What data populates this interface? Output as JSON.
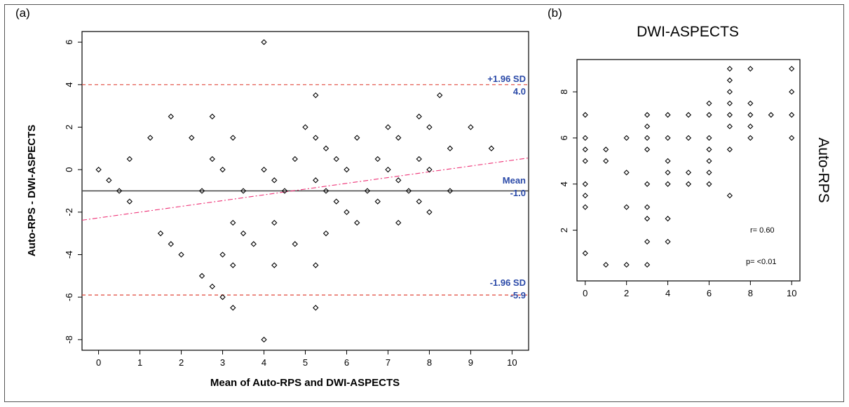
{
  "figure": {
    "panel_a_label": "(a)",
    "panel_b_label": "(b)"
  },
  "chart_data": [
    {
      "type": "scatter",
      "subtype": "bland-altman",
      "panel": "(a)",
      "xlabel": "Mean of Auto-RPS and DWI-ASPECTS",
      "ylabel": "Auto-RPS - DWI-ASPECTS",
      "xlim": [
        -0.4,
        10.4
      ],
      "ylim": [
        -8.5,
        6.5
      ],
      "xticks": [
        0,
        1,
        2,
        3,
        4,
        5,
        6,
        7,
        8,
        9,
        10
      ],
      "yticks": [
        -8,
        -6,
        -4,
        -2,
        0,
        2,
        4,
        6
      ],
      "grid": false,
      "marker": "diamond-open",
      "points": [
        [
          0,
          0
        ],
        [
          0.25,
          -0.5
        ],
        [
          0.5,
          -1
        ],
        [
          0.75,
          0.5
        ],
        [
          0.75,
          -1.5
        ],
        [
          1.25,
          1.5
        ],
        [
          1.5,
          -3
        ],
        [
          1.75,
          2.5
        ],
        [
          1.75,
          -3.5
        ],
        [
          2,
          -4
        ],
        [
          2.25,
          1.5
        ],
        [
          2.5,
          -1
        ],
        [
          2.5,
          -5
        ],
        [
          2.75,
          2.5
        ],
        [
          2.75,
          0.5
        ],
        [
          2.75,
          -5.5
        ],
        [
          3,
          0
        ],
        [
          3,
          -4
        ],
        [
          3,
          -6
        ],
        [
          3.25,
          1.5
        ],
        [
          3.25,
          -2.5
        ],
        [
          3.25,
          -4.5
        ],
        [
          3.25,
          -6.5
        ],
        [
          3.5,
          -1
        ],
        [
          3.5,
          -3
        ],
        [
          3.75,
          -3.5
        ],
        [
          4,
          6
        ],
        [
          4,
          0
        ],
        [
          4,
          -8
        ],
        [
          4.25,
          -0.5
        ],
        [
          4.25,
          -2.5
        ],
        [
          4.25,
          -4.5
        ],
        [
          4.5,
          -1
        ],
        [
          4.75,
          0.5
        ],
        [
          4.75,
          -3.5
        ],
        [
          5,
          2
        ],
        [
          5.25,
          3.5
        ],
        [
          5.25,
          1.5
        ],
        [
          5.25,
          -0.5
        ],
        [
          5.25,
          -4.5
        ],
        [
          5.25,
          -6.5
        ],
        [
          5.5,
          1
        ],
        [
          5.5,
          -1
        ],
        [
          5.5,
          -3
        ],
        [
          5.75,
          0.5
        ],
        [
          5.75,
          -1.5
        ],
        [
          6,
          0
        ],
        [
          6,
          -2
        ],
        [
          6.25,
          1.5
        ],
        [
          6.25,
          -2.5
        ],
        [
          6.5,
          -1
        ],
        [
          6.75,
          0.5
        ],
        [
          6.75,
          -1.5
        ],
        [
          7,
          2
        ],
        [
          7,
          0
        ],
        [
          7.25,
          1.5
        ],
        [
          7.25,
          -0.5
        ],
        [
          7.25,
          -2.5
        ],
        [
          7.5,
          -1
        ],
        [
          7.75,
          2.5
        ],
        [
          7.75,
          0.5
        ],
        [
          7.75,
          -1.5
        ],
        [
          8,
          2
        ],
        [
          8,
          0
        ],
        [
          8,
          -2
        ],
        [
          8.25,
          3.5
        ],
        [
          8.5,
          1
        ],
        [
          8.5,
          -1
        ],
        [
          9,
          2
        ],
        [
          9.5,
          1
        ]
      ],
      "mean_line": {
        "y": -1.0,
        "label": "Mean",
        "value_label": "-1.0",
        "color": "#444444"
      },
      "upper_loa": {
        "y": 4.0,
        "label": "+1.96 SD",
        "value_label": "4.0",
        "color": "#e0473a"
      },
      "lower_loa": {
        "y": -5.9,
        "label": "-1.96 SD",
        "value_label": "-5.9",
        "color": "#e0473a"
      },
      "trend_line": {
        "x": [
          -0.4,
          10.4
        ],
        "y": [
          -2.38,
          0.55
        ],
        "color": "#ee3377"
      },
      "annotation_color": "#2b4aa8"
    },
    {
      "type": "scatter",
      "panel": "(b)",
      "title": "DWI-ASPECTS",
      "xlabel": "",
      "ylabel": "Auto-RPS",
      "xlim": [
        -0.4,
        10.4
      ],
      "ylim": [
        -0.2,
        9.4
      ],
      "xticks": [
        0,
        2,
        4,
        6,
        8,
        10
      ],
      "yticks": [
        2,
        4,
        6,
        8
      ],
      "grid": false,
      "marker": "diamond-open",
      "points": [
        [
          0,
          7
        ],
        [
          0,
          6
        ],
        [
          0,
          5.5
        ],
        [
          0,
          5
        ],
        [
          0,
          4
        ],
        [
          0,
          3.5
        ],
        [
          0,
          3
        ],
        [
          0,
          1
        ],
        [
          1,
          5.5
        ],
        [
          1,
          5
        ],
        [
          1,
          0.5
        ],
        [
          2,
          6
        ],
        [
          2,
          4.5
        ],
        [
          2,
          3
        ],
        [
          2,
          0.5
        ],
        [
          3,
          7
        ],
        [
          3,
          6.5
        ],
        [
          3,
          6
        ],
        [
          3,
          5.5
        ],
        [
          3,
          4
        ],
        [
          3,
          3
        ],
        [
          3,
          2.5
        ],
        [
          3,
          1.5
        ],
        [
          3,
          0.5
        ],
        [
          4,
          7
        ],
        [
          4,
          6
        ],
        [
          4,
          5
        ],
        [
          4,
          4.5
        ],
        [
          4,
          4
        ],
        [
          4,
          2.5
        ],
        [
          4,
          1.5
        ],
        [
          5,
          7
        ],
        [
          5,
          6
        ],
        [
          5,
          4.5
        ],
        [
          5,
          4
        ],
        [
          6,
          7.5
        ],
        [
          6,
          7
        ],
        [
          6,
          6
        ],
        [
          6,
          5.5
        ],
        [
          6,
          5
        ],
        [
          6,
          4.5
        ],
        [
          6,
          4
        ],
        [
          7,
          9
        ],
        [
          7,
          8.5
        ],
        [
          7,
          8
        ],
        [
          7,
          7.5
        ],
        [
          7,
          7
        ],
        [
          7,
          6.5
        ],
        [
          7,
          5.5
        ],
        [
          7,
          3.5
        ],
        [
          8,
          9
        ],
        [
          8,
          7.5
        ],
        [
          8,
          7
        ],
        [
          8,
          6.5
        ],
        [
          8,
          6
        ],
        [
          9,
          7
        ],
        [
          10,
          9
        ],
        [
          10,
          8
        ],
        [
          10,
          7
        ],
        [
          10,
          6
        ]
      ],
      "annotations": {
        "r": "r= 0.60",
        "p": "p= <0.01"
      }
    }
  ]
}
